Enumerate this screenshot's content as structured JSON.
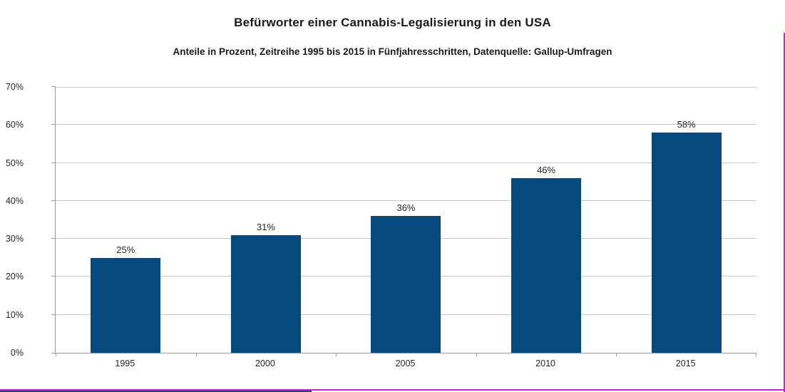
{
  "chart_data": {
    "type": "bar",
    "title": "Befürworter einer Cannabis-Legalisierung in den USA",
    "subtitle": "Anteile in Prozent, Zeitreihe 1995 bis 2015 in Fünfjahresschritten, Datenquelle: Gallup-Umfragen",
    "categories": [
      "1995",
      "2000",
      "2005",
      "2010",
      "2015"
    ],
    "values": [
      25,
      31,
      36,
      46,
      58
    ],
    "value_labels": [
      "25%",
      "31%",
      "36%",
      "46%",
      "58%"
    ],
    "xlabel": "",
    "ylabel": "",
    "ylim": [
      0,
      70
    ],
    "ytick_step": 10,
    "ytick_labels": [
      "0%",
      "10%",
      "20%",
      "30%",
      "40%",
      "50%",
      "60%",
      "70%"
    ],
    "legend": "none",
    "grid": "horizontal",
    "colors": {
      "bar": "#064a7d",
      "gridline": "#c8c8c8",
      "axis": "#9a9a9a",
      "text": "#1a1a1a",
      "frame_border": "#cf1fcf",
      "bottom_strip": "#1a4472"
    }
  }
}
